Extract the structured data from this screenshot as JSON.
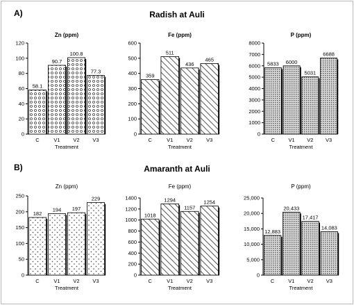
{
  "panels": [
    {
      "label": "A)",
      "title": "Radish at Auli"
    },
    {
      "label": "B)",
      "title": "Amaranth at Auli"
    }
  ],
  "chart_data": [
    {
      "type": "bar",
      "title": "Zn (ppm)",
      "xlabel": "Treatment",
      "ylabel": "",
      "categories": [
        "C",
        "V1",
        "V2",
        "V3"
      ],
      "values": [
        58.1,
        90.7,
        100.8,
        77.3
      ],
      "value_labels": [
        "58.1",
        "90.7",
        "100.8",
        "77.3"
      ],
      "ylim": [
        0,
        120
      ],
      "yticks": [
        0,
        20,
        40,
        60,
        80,
        100,
        120
      ],
      "ytick_labels": [
        "0",
        "20",
        "40",
        "60",
        "80",
        "100",
        "120"
      ],
      "pattern": "circles",
      "title_bold": true
    },
    {
      "type": "bar",
      "title": "Fe (ppm)",
      "xlabel": "Treatment",
      "ylabel": "",
      "categories": [
        "C",
        "V1",
        "V2",
        "V3"
      ],
      "values": [
        359,
        511,
        436,
        465
      ],
      "value_labels": [
        "359",
        "511",
        "436",
        "465"
      ],
      "ylim": [
        0,
        600
      ],
      "yticks": [
        0,
        100,
        200,
        300,
        400,
        500,
        600
      ],
      "ytick_labels": [
        "0",
        "100",
        "200",
        "300",
        "400",
        "500",
        "600"
      ],
      "pattern": "diagonal",
      "title_bold": true
    },
    {
      "type": "bar",
      "title": "P (ppm)",
      "xlabel": "Treatment",
      "ylabel": "",
      "categories": [
        "C",
        "V1",
        "V2",
        "V3"
      ],
      "values": [
        5833,
        6000,
        5031,
        6688
      ],
      "value_labels": [
        "5833",
        "6000",
        "5031",
        "6688"
      ],
      "ylim": [
        0,
        8000
      ],
      "yticks": [
        0,
        1000,
        2000,
        3000,
        4000,
        5000,
        6000,
        7000,
        8000
      ],
      "ytick_labels": [
        "0",
        "1000",
        "2000",
        "3000",
        "4000",
        "5000",
        "6000",
        "7000",
        "8000"
      ],
      "pattern": "dots",
      "title_bold": true
    },
    {
      "type": "bar",
      "title": "Zn (ppm)",
      "xlabel": "Treatment",
      "ylabel": "",
      "categories": [
        "C",
        "V1",
        "V2",
        "V3"
      ],
      "values": [
        182,
        194,
        197,
        229
      ],
      "value_labels": [
        "182",
        "194",
        "197",
        "229"
      ],
      "ylim": [
        0,
        250
      ],
      "yticks": [
        0,
        50,
        100,
        150,
        200,
        250
      ],
      "ytick_labels": [
        "0",
        "50",
        "100",
        "150",
        "200",
        "250"
      ],
      "pattern": "sparse",
      "title_bold": false
    },
    {
      "type": "bar",
      "title": "Fe (ppm)",
      "xlabel": "Treatment",
      "ylabel": "",
      "categories": [
        "C",
        "V1",
        "V2",
        "V3"
      ],
      "values": [
        1018,
        1294,
        1157,
        1254
      ],
      "value_labels": [
        "1018",
        "1294",
        "1157",
        "1254"
      ],
      "ylim": [
        0,
        1400
      ],
      "yticks": [
        0,
        200,
        400,
        600,
        800,
        1000,
        1200,
        1400
      ],
      "ytick_labels": [
        "0",
        "200",
        "400",
        "600",
        "800",
        "1000",
        "1200",
        "1400"
      ],
      "pattern": "diagonal",
      "title_bold": false
    },
    {
      "type": "bar",
      "title": "P (ppm)",
      "xlabel": "Treatment",
      "ylabel": "",
      "categories": [
        "C",
        "V1",
        "V2",
        "V3"
      ],
      "values": [
        12883,
        20433,
        17417,
        14083
      ],
      "value_labels": [
        "12,883",
        "20,433",
        "17,417",
        "14,083"
      ],
      "ylim": [
        0,
        25000
      ],
      "yticks": [
        0,
        5000,
        10000,
        15000,
        20000,
        25000
      ],
      "ytick_labels": [
        "0",
        "5,000",
        "10,000",
        "15,000",
        "20,000",
        "25,000"
      ],
      "pattern": "dots",
      "title_bold": false
    }
  ]
}
